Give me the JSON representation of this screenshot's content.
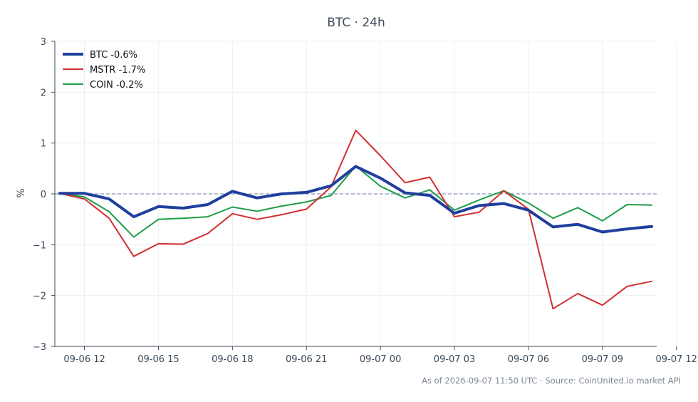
{
  "chart_data": {
    "type": "line",
    "title": "BTC · 24h",
    "ylabel": "%",
    "xlabel": "",
    "ylim": [
      -3,
      3
    ],
    "yticks": [
      3,
      2,
      1,
      0,
      -1,
      -2,
      -3
    ],
    "ytick_labels": [
      "3",
      "2",
      "1",
      "0",
      "−1",
      "−2",
      "−3"
    ],
    "xlim": [
      10.8,
      35.2
    ],
    "xticks": [
      {
        "pos": 12,
        "label": "09-06 12"
      },
      {
        "pos": 15,
        "label": "09-06 15"
      },
      {
        "pos": 18,
        "label": "09-06 18"
      },
      {
        "pos": 21,
        "label": "09-06 21"
      },
      {
        "pos": 24,
        "label": "09-07 00"
      },
      {
        "pos": 27,
        "label": "09-07 03"
      },
      {
        "pos": 30,
        "label": "09-07 06"
      },
      {
        "pos": 33,
        "label": "09-07 09"
      },
      {
        "pos": 36,
        "label": "09-07 12"
      }
    ],
    "x": [
      11,
      12,
      13,
      14,
      15,
      16,
      17,
      18,
      19,
      20,
      21,
      22,
      23,
      24,
      25,
      26,
      27,
      28,
      29,
      30,
      31,
      32,
      33,
      34,
      35
    ],
    "series": [
      {
        "name": "BTC -0.6%",
        "color": "#1f3f9e",
        "width": 4,
        "values": [
          0.01,
          0.01,
          -0.1,
          -0.45,
          -0.25,
          -0.28,
          -0.21,
          0.05,
          -0.08,
          0.0,
          0.03,
          0.16,
          0.54,
          0.31,
          0.02,
          -0.03,
          -0.38,
          -0.23,
          -0.19,
          -0.32,
          -0.65,
          -0.6,
          -0.75,
          -0.69,
          -0.64
        ]
      },
      {
        "name": "MSTR -1.7%",
        "color": "#d32f2f",
        "width": 2,
        "values": [
          0.01,
          -0.1,
          -0.48,
          -1.23,
          -0.98,
          -0.99,
          -0.78,
          -0.39,
          -0.5,
          -0.41,
          -0.3,
          0.14,
          1.25,
          0.75,
          0.22,
          0.33,
          -0.45,
          -0.36,
          0.06,
          -0.3,
          -2.26,
          -1.96,
          -2.19,
          -1.82,
          -1.72
        ]
      },
      {
        "name": "COIN -0.2%",
        "color": "#1e9e4a",
        "width": 2,
        "values": [
          0.01,
          -0.06,
          -0.35,
          -0.85,
          -0.5,
          -0.48,
          -0.45,
          -0.26,
          -0.34,
          -0.24,
          -0.16,
          -0.03,
          0.55,
          0.15,
          -0.08,
          0.08,
          -0.32,
          -0.12,
          0.06,
          -0.18,
          -0.48,
          -0.27,
          -0.53,
          -0.21,
          -0.22
        ]
      }
    ],
    "zero_line": true,
    "grid": true,
    "legend": "top-left"
  },
  "footer": "As of 2026-09-07 11:50 UTC · Source: CoinUnited.io market API"
}
